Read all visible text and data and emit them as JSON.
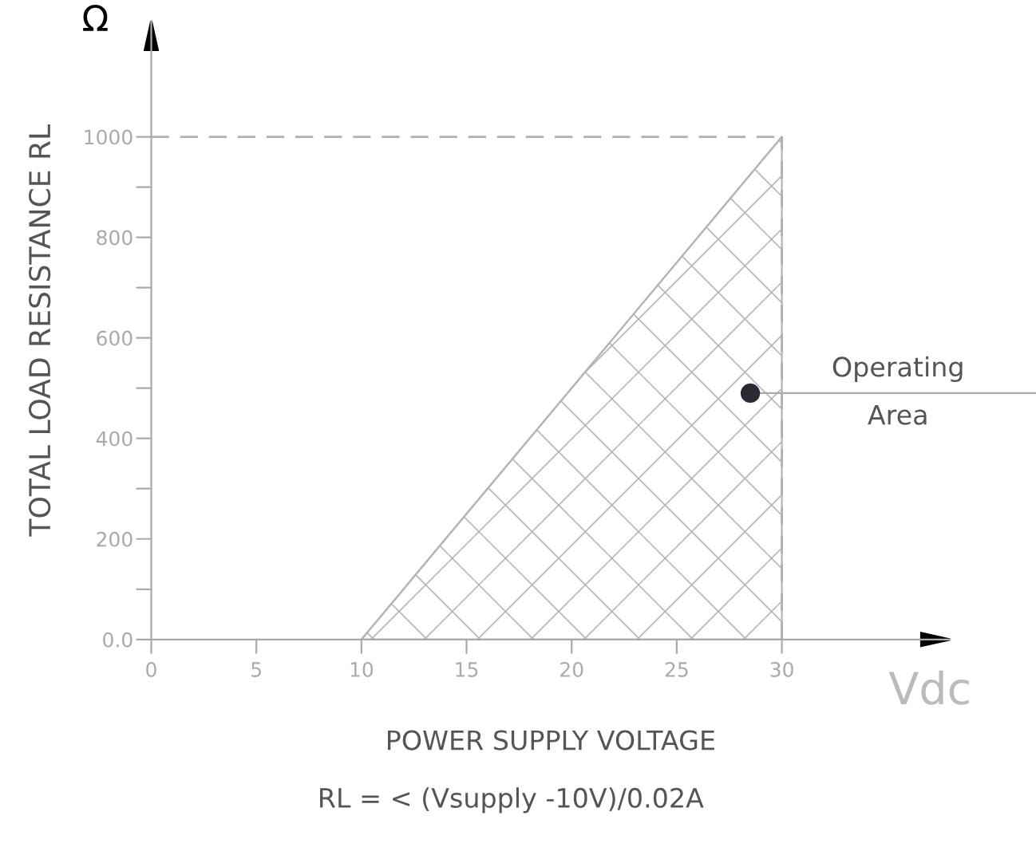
{
  "chart_data": {
    "type": "area",
    "xlabel": "POWER SUPPLY VOLTAGE",
    "ylabel": "TOTAL LOAD RESISTANCE RL",
    "series": [
      {
        "color": "#b5b5b5",
        "x": [
          10,
          30
        ],
        "values": [
          0,
          1000
        ]
      },
      {
        "type": "scatter",
        "color": "#2a2a35",
        "marker": "circle",
        "x": [
          28.5
        ],
        "values": [
          490
        ]
      }
    ],
    "xlim": [
      0,
      38
    ],
    "ylim": [
      0,
      1230
    ],
    "xticks": [
      0,
      5,
      10,
      15,
      20,
      25,
      30
    ],
    "yticks": [
      {
        "value": 0,
        "label": "0.0"
      },
      {
        "value": 100,
        "label": null
      },
      200,
      {
        "value": 300,
        "label": null
      },
      400,
      {
        "value": 500,
        "label": null
      },
      600,
      {
        "value": 700,
        "label": null
      },
      800,
      {
        "value": 900,
        "label": null
      },
      1000
    ],
    "ref_lines": [
      {
        "axis": "y",
        "value": 1000,
        "color": "#b0b0b0",
        "line_style": "dashed"
      },
      {
        "axis": "x",
        "value": 30,
        "color": "#b0b0b0",
        "line_style": "dashed"
      },
      {
        "axis": "y",
        "value": 490,
        "label": "Operating\nArea",
        "color": "#aaaaaa",
        "line_style": "solid"
      }
    ],
    "annotations": [
      "Ω",
      "Vdc",
      "RL = < (Vsupply -10V)/0.02A"
    ],
    "grid": false,
    "legend": false
  }
}
